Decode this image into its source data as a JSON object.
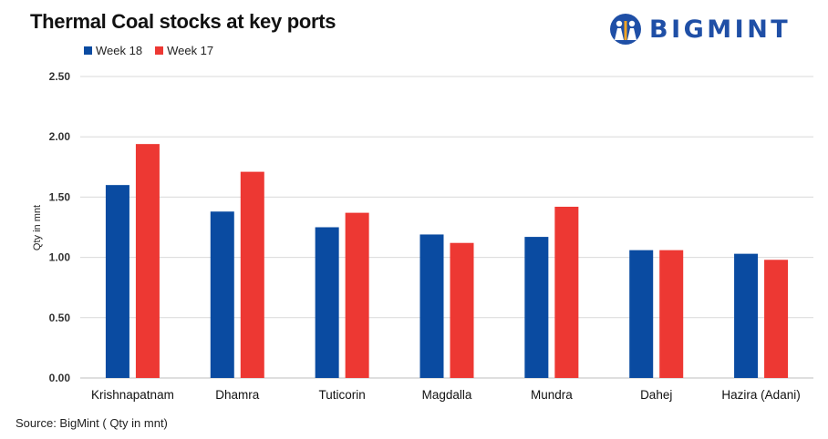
{
  "chart_data": {
    "type": "bar",
    "title": "Thermal Coal stocks at key ports",
    "categories": [
      "Krishnapatnam",
      "Dhamra",
      "Tuticorin",
      "Magdalla",
      "Mundra",
      "Dahej",
      "Hazira (Adani)"
    ],
    "series": [
      {
        "name": "Week 18",
        "color": "#0a4ba1",
        "values": [
          1.6,
          1.38,
          1.25,
          1.19,
          1.17,
          1.06,
          1.03
        ]
      },
      {
        "name": "Week 17",
        "color": "#ed3833",
        "values": [
          1.94,
          1.71,
          1.37,
          1.12,
          1.42,
          1.06,
          0.98
        ]
      }
    ],
    "ylabel": "Qty in mnt",
    "xlabel": "",
    "ylim": [
      0,
      2.5
    ],
    "yticks": [
      "0.00",
      "0.50",
      "1.00",
      "1.50",
      "2.00",
      "2.50"
    ],
    "grid": true,
    "legend_position": "top-left",
    "source": "Source: BigMint ( Qty in mnt)"
  },
  "brand": {
    "name": "BIGMINT",
    "color": "#1f4fa6"
  }
}
